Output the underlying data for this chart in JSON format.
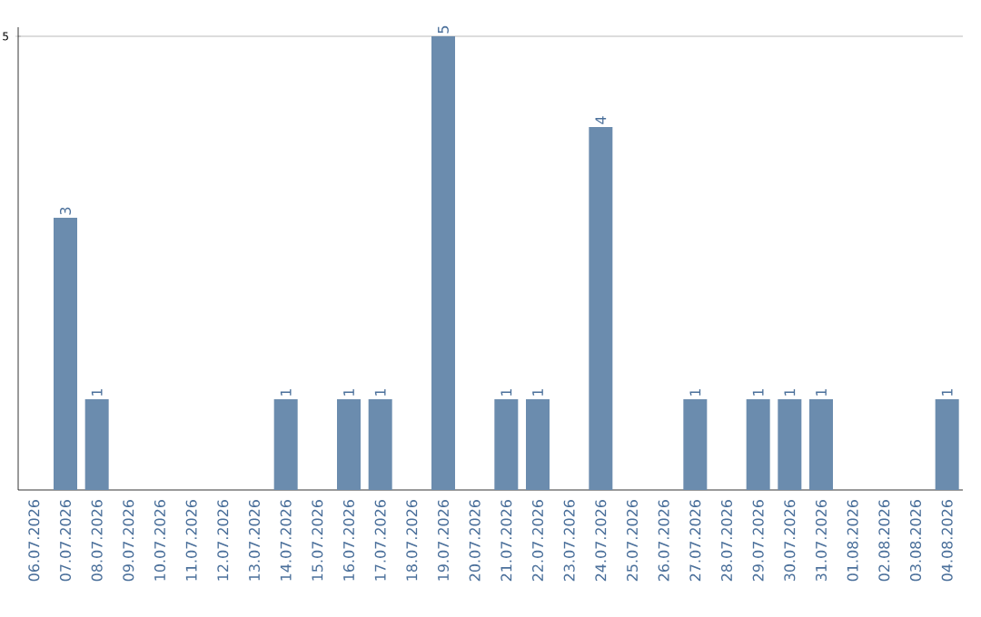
{
  "chart_data": {
    "type": "bar",
    "categories": [
      "06.07.2026",
      "07.07.2026",
      "08.07.2026",
      "09.07.2026",
      "10.07.2026",
      "11.07.2026",
      "12.07.2026",
      "13.07.2026",
      "14.07.2026",
      "15.07.2026",
      "16.07.2026",
      "17.07.2026",
      "18.07.2026",
      "19.07.2026",
      "20.07.2026",
      "21.07.2026",
      "22.07.2026",
      "23.07.2026",
      "24.07.2026",
      "25.07.2026",
      "26.07.2026",
      "27.07.2026",
      "28.07.2026",
      "29.07.2026",
      "30.07.2026",
      "31.07.2026",
      "01.08.2026",
      "02.08.2026",
      "03.08.2026",
      "04.08.2026"
    ],
    "values": [
      0,
      3,
      1,
      0,
      0,
      0,
      0,
      0,
      1,
      0,
      1,
      1,
      0,
      5,
      0,
      1,
      1,
      0,
      4,
      0,
      0,
      1,
      0,
      1,
      1,
      1,
      0,
      0,
      0,
      1
    ],
    "value_labels": [
      null,
      "3",
      "1",
      null,
      null,
      null,
      null,
      null,
      "1",
      null,
      "1",
      "1",
      null,
      "5",
      null,
      "1",
      "1",
      null,
      "4",
      null,
      null,
      "1",
      null,
      "1",
      "1",
      "1",
      null,
      null,
      null,
      "1"
    ],
    "color": "#6b8cae",
    "ylim": [
      0,
      5.1
    ],
    "yticks": [
      5
    ],
    "grid": "y"
  }
}
